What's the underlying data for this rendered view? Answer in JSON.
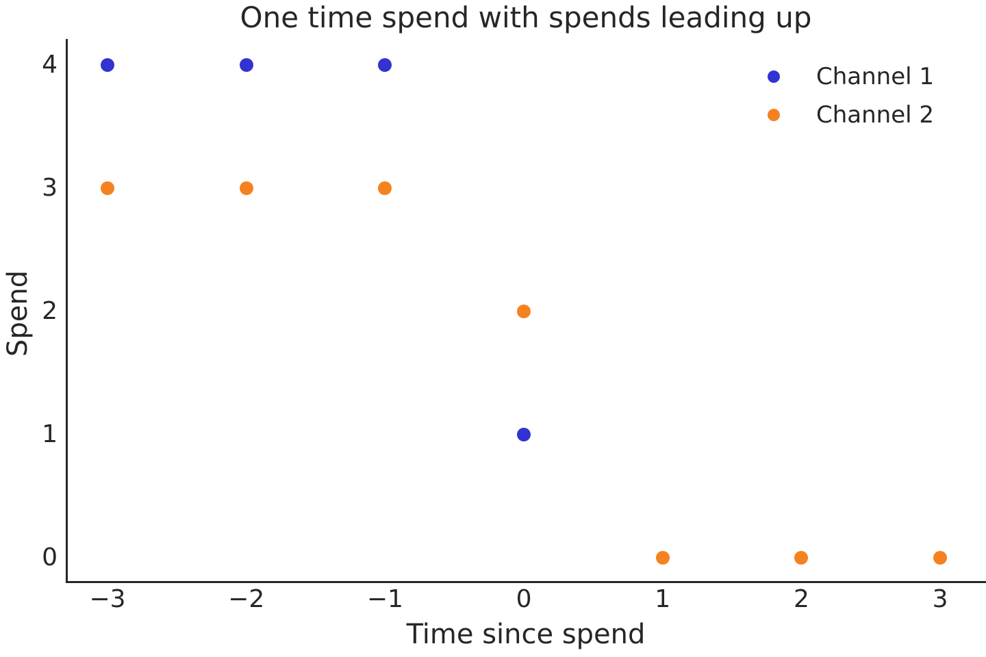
{
  "chart_data": {
    "type": "scatter",
    "title": "One time spend with spends leading up",
    "xlabel": "Time since spend",
    "ylabel": "Spend",
    "x_ticks": [
      {
        "value": -3,
        "label": "−3"
      },
      {
        "value": -2,
        "label": "−2"
      },
      {
        "value": -1,
        "label": "−1"
      },
      {
        "value": 0,
        "label": "0"
      },
      {
        "value": 1,
        "label": "1"
      },
      {
        "value": 2,
        "label": "2"
      },
      {
        "value": 3,
        "label": "3"
      }
    ],
    "y_ticks": [
      {
        "value": 0,
        "label": "0"
      },
      {
        "value": 1,
        "label": "1"
      },
      {
        "value": 2,
        "label": "2"
      },
      {
        "value": 3,
        "label": "3"
      },
      {
        "value": 4,
        "label": "4"
      }
    ],
    "xlim": [
      -3.301,
      3.33
    ],
    "ylim": [
      -0.206,
      4.211
    ],
    "grid": false,
    "legend_position": "upper right",
    "series": [
      {
        "name": "Channel 1",
        "color": "#3233d1",
        "points": [
          [
            -3,
            4
          ],
          [
            -2,
            4
          ],
          [
            -1,
            4
          ],
          [
            0,
            1
          ]
        ]
      },
      {
        "name": "Channel 2",
        "color": "#f58220",
        "points": [
          [
            -3,
            3
          ],
          [
            -2,
            3
          ],
          [
            -1,
            3
          ],
          [
            0,
            2
          ],
          [
            1,
            0
          ],
          [
            2,
            0
          ],
          [
            3,
            0
          ]
        ]
      }
    ],
    "colors": {
      "text": "#262626",
      "spine": "#262626",
      "background": "#ffffff"
    }
  }
}
